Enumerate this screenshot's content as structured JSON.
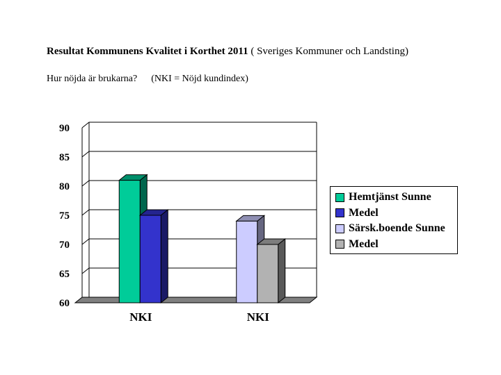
{
  "header": {
    "title_bold": "Resultat Kommunens Kvalitet i Korthet 2011",
    "title_rest": "( Sveriges Kommuner och Landsting)",
    "question": "Hur nöjda är brukarna?",
    "note": "(NKI = Nöjd kundindex)"
  },
  "chart_data": {
    "type": "bar",
    "style": "3d-clustered-columns",
    "categories": [
      "NKI",
      "NKI"
    ],
    "ylim": [
      60,
      90
    ],
    "yticks": [
      60,
      65,
      70,
      75,
      80,
      85,
      90
    ],
    "grid": true,
    "legend_position": "right",
    "series": [
      {
        "name": "Hemtjänst Sunne",
        "color": "#00cc99",
        "values": [
          81,
          null
        ]
      },
      {
        "name": "Medel",
        "color": "#3333cc",
        "values": [
          75,
          null
        ]
      },
      {
        "name": "Särsk.boende Sunne",
        "color": "#ccccff",
        "values": [
          null,
          74
        ]
      },
      {
        "name": "Medel",
        "color": "#b2b2b2",
        "values": [
          null,
          70
        ]
      }
    ]
  }
}
